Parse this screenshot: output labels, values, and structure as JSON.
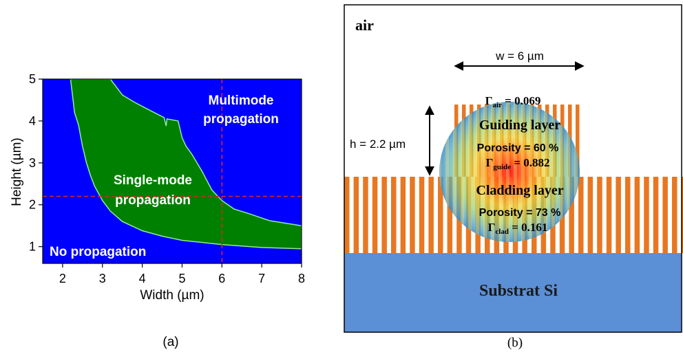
{
  "panel_a": {
    "caption": "(a)",
    "chart_data": {
      "type": "heatmap",
      "title": "",
      "xlabel": "Width (µm)",
      "ylabel": "Height (µm)",
      "xlim": [
        1.5,
        8
      ],
      "ylim": [
        0.6,
        5
      ],
      "xticks": [
        2,
        3,
        4,
        5,
        6,
        7,
        8
      ],
      "yticks": [
        1,
        2,
        3,
        4,
        5
      ],
      "colors": {
        "no_propagation": "#0000ff",
        "single_mode": "#008000",
        "boundary": "#90ee90",
        "marker": "#dd2222"
      },
      "regions": [
        {
          "name": "No propagation",
          "label": "No propagation"
        },
        {
          "name": "Single-mode propagation",
          "label_lines": [
            "Single-mode",
            "propagation"
          ]
        },
        {
          "name": "Multimode propagation",
          "label_lines": [
            "Multimode",
            "propagation"
          ]
        }
      ],
      "single_mode_upper_boundary": [
        [
          2.2,
          5.0
        ],
        [
          2.25,
          4.6
        ],
        [
          2.3,
          4.2
        ],
        [
          2.4,
          3.9
        ],
        [
          2.5,
          3.4
        ],
        [
          2.6,
          3.0
        ],
        [
          2.7,
          2.7
        ],
        [
          2.8,
          2.45
        ],
        [
          3.0,
          2.1
        ],
        [
          3.2,
          1.85
        ],
        [
          3.5,
          1.6
        ],
        [
          4.0,
          1.38
        ],
        [
          4.5,
          1.25
        ],
        [
          5.0,
          1.15
        ],
        [
          5.5,
          1.1
        ],
        [
          6.0,
          1.05
        ],
        [
          7.0,
          0.98
        ],
        [
          8.0,
          0.95
        ]
      ],
      "single_mode_lower_boundary": [
        [
          3.2,
          5.0
        ],
        [
          3.5,
          4.62
        ],
        [
          3.8,
          4.45
        ],
        [
          4.2,
          4.25
        ],
        [
          4.55,
          4.08
        ],
        [
          4.6,
          3.88
        ],
        [
          4.62,
          4.05
        ],
        [
          4.9,
          4.0
        ],
        [
          5.0,
          3.6
        ],
        [
          5.1,
          3.4
        ],
        [
          5.25,
          3.2
        ],
        [
          5.5,
          2.8
        ],
        [
          5.75,
          2.35
        ],
        [
          6.0,
          2.1
        ],
        [
          6.3,
          1.9
        ],
        [
          6.7,
          1.78
        ],
        [
          7.2,
          1.62
        ],
        [
          8.0,
          1.5
        ]
      ],
      "dashed_marker": {
        "x": 6,
        "y": 2.2
      }
    }
  },
  "panel_b": {
    "caption": "(b)",
    "air_label": "air",
    "width_label": "w = 6 µm",
    "height_label": "h = 2.2 µm",
    "gamma_air_symbol": "Γ",
    "gamma_air_sub": "air",
    "gamma_air_value": " = 0.069",
    "guiding_layer_label": "Guiding layer",
    "guiding_porosity": "Porosity = 60 %",
    "gamma_guide_symbol": "Γ",
    "gamma_guide_sub": "guide",
    "gamma_guide_value": " = 0.882",
    "cladding_layer_label": "Cladding layer",
    "cladding_porosity": "Porosity = 73 %",
    "gamma_clad_symbol": "Γ",
    "gamma_clad_sub": "clad",
    "gamma_clad_value": " = 0.161",
    "substrate_label": "Substrat Si",
    "colors": {
      "pores": "#e87722",
      "substrate": "#5b8fd6",
      "frame": "#000000"
    }
  }
}
